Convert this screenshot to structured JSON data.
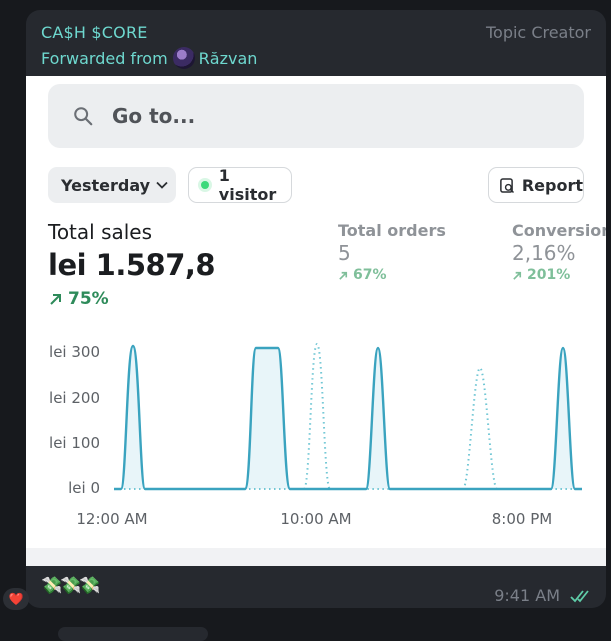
{
  "message": {
    "channel_name": "CA$H $CORE",
    "forwarded_prefix": "Forwarded from",
    "forwarded_from": "Răzvan",
    "sender_role": "Topic Creator",
    "footer_emoji": "💸💸💸",
    "time": "9:41 AM",
    "reaction": "❤️"
  },
  "dashboard": {
    "search_placeholder": "Go to...",
    "date_filter": "Yesterday",
    "visitors": "1 visitor",
    "report_label": "Report",
    "total_sales": {
      "label": "Total sales",
      "value": "lei 1.587,8",
      "change": "75%"
    },
    "total_orders": {
      "label": "Total orders",
      "value": "5",
      "change": "67%"
    },
    "conversion": {
      "label": "Conversion",
      "value": "2,16%",
      "change": "201%"
    }
  },
  "chart_data": {
    "type": "line",
    "y_ticks": [
      "lei 300",
      "lei 200",
      "lei 100",
      "lei 0"
    ],
    "x_ticks": [
      "12:00 AM",
      "10:00 AM",
      "8:00 PM"
    ],
    "ylim": [
      0,
      320
    ],
    "grid": false,
    "colors": {
      "current": "#3aa3bf",
      "previous": "#6fc6d4",
      "fill": "#e8f5f9"
    }
  }
}
